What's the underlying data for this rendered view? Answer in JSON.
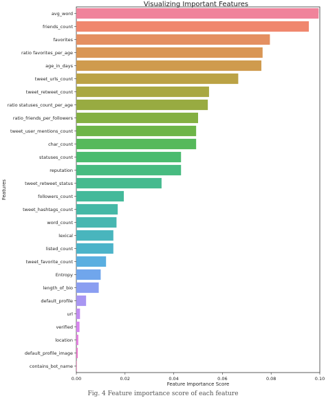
{
  "chart_data": {
    "type": "bar",
    "orientation": "horizontal",
    "title": "Visualizing Important Features",
    "xlabel": "Feature Importance Score",
    "ylabel": "Features",
    "xlim": [
      0,
      0.1
    ],
    "xticks": [
      "0.00",
      "0.02",
      "0.04",
      "0.06",
      "0.08",
      "0.10"
    ],
    "grid": false,
    "legend": "top-right (empty)",
    "categories": [
      "avg_word",
      "friends_count",
      "favorites",
      "ratio favorites_per_age",
      "age_in_days",
      "tweet_urls_count",
      "tweet_retweet_count",
      "ratio statuses_count_per_age",
      "ratio_friends_per_followers",
      "tweet_user_mentions_count",
      "char_count",
      "statuses_count",
      "reputation",
      "tweet_retweet_status",
      "followers_count",
      "tweet_hashtags_count",
      "word_count",
      "lexical",
      "listed_count",
      "tweet_favorite_count",
      "Entropy",
      "length_of_bio",
      "default_profile",
      "url",
      "verified",
      "location",
      "default_profile_image",
      "contains_bot_name"
    ],
    "values": [
      0.0995,
      0.0955,
      0.0795,
      0.0765,
      0.076,
      0.0665,
      0.0545,
      0.054,
      0.05,
      0.0492,
      0.0492,
      0.043,
      0.043,
      0.035,
      0.0195,
      0.017,
      0.0165,
      0.0152,
      0.0152,
      0.0122,
      0.01,
      0.0092,
      0.004,
      0.0015,
      0.0013,
      0.0008,
      0.0006,
      0.0002
    ],
    "colors": [
      "#f0839b",
      "#f0876e",
      "#e48f61",
      "#d99655",
      "#cf9b4e",
      "#bba245",
      "#a9a842",
      "#98ab41",
      "#84b042",
      "#6db548",
      "#56b95b",
      "#4bbb6f",
      "#47bb80",
      "#45ba8e",
      "#44b99a",
      "#45b8a6",
      "#47b7b1",
      "#49b5bd",
      "#4cb3c9",
      "#5aaee0",
      "#70a6ec",
      "#8a9ef1",
      "#a896f2",
      "#c18cf1",
      "#d785ee",
      "#e47ddf",
      "#ec7ccd",
      "#f07eb7"
    ]
  },
  "caption": "Fig. 4 Feature importance score of each feature"
}
